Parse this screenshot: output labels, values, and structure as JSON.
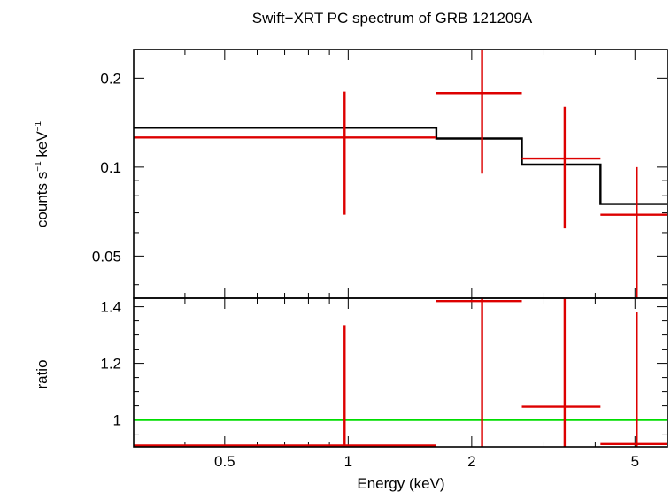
{
  "chart_data": [
    {
      "type": "scatter",
      "title": "Swift−XRT PC spectrum of GRB 121209A",
      "xlabel": "",
      "ylabel_parts": [
        "counts s",
        "−1",
        " keV",
        "−1"
      ],
      "xscale": "log",
      "yscale": "log",
      "xlim": [
        0.3,
        6.0
      ],
      "ylim": [
        0.036,
        0.25
      ],
      "yticks": [
        {
          "value": 0.2,
          "label": "0.2"
        },
        {
          "value": 0.1,
          "label": "0.1"
        },
        {
          "value": 0.05,
          "label": "0.05"
        }
      ],
      "series": [
        {
          "kind": "data",
          "color": "#dd0000",
          "points": [
            {
              "x": 0.98,
              "xlo": 0.3,
              "xhi": 1.64,
              "y": 0.126,
              "ylo": 0.069,
              "yhi": 0.18
            },
            {
              "x": 2.12,
              "xlo": 1.64,
              "xhi": 2.65,
              "y": 0.178,
              "ylo": 0.095,
              "yhi": 0.255
            },
            {
              "x": 3.37,
              "xlo": 2.65,
              "xhi": 4.12,
              "y": 0.107,
              "ylo": 0.062,
              "yhi": 0.16
            },
            {
              "x": 5.05,
              "xlo": 4.12,
              "xhi": 6.0,
              "y": 0.069,
              "ylo": 0.036,
              "yhi": 0.1
            }
          ]
        },
        {
          "kind": "model",
          "color": "#000000",
          "steps": [
            {
              "xlo": 0.3,
              "xhi": 1.64,
              "y": 0.136
            },
            {
              "xlo": 1.64,
              "xhi": 2.65,
              "y": 0.125
            },
            {
              "xlo": 2.65,
              "xhi": 4.12,
              "y": 0.102
            },
            {
              "xlo": 4.12,
              "xhi": 6.0,
              "y": 0.075
            }
          ]
        }
      ]
    },
    {
      "type": "scatter",
      "title": "",
      "xlabel": "Energy (keV)",
      "ylabel": "ratio",
      "xscale": "log",
      "yscale": "linear",
      "xlim": [
        0.3,
        6.0
      ],
      "ylim": [
        0.905,
        1.43
      ],
      "xticks": [
        {
          "value": 0.5,
          "label": "0.5"
        },
        {
          "value": 1,
          "label": "1"
        },
        {
          "value": 2,
          "label": "2"
        },
        {
          "value": 5,
          "label": "5"
        }
      ],
      "yticks": [
        {
          "value": 1.4,
          "label": "1.4"
        },
        {
          "value": 1.2,
          "label": "1.2"
        },
        {
          "value": 1,
          "label": "1"
        }
      ],
      "reference_line": {
        "y": 1.0,
        "color": "#00dd00"
      },
      "series": [
        {
          "kind": "ratio",
          "color": "#dd0000",
          "points": [
            {
              "x": 0.98,
              "xlo": 0.3,
              "xhi": 1.64,
              "y": 0.91,
              "ylo": 0.905,
              "yhi": 1.335
            },
            {
              "x": 2.12,
              "xlo": 1.64,
              "xhi": 2.65,
              "y": 1.42,
              "ylo": 0.905,
              "yhi": 1.43
            },
            {
              "x": 3.37,
              "xlo": 2.65,
              "xhi": 4.12,
              "y": 1.047,
              "ylo": 0.905,
              "yhi": 1.43
            },
            {
              "x": 5.05,
              "xlo": 4.12,
              "xhi": 6.0,
              "y": 0.915,
              "ylo": 0.905,
              "yhi": 1.38
            }
          ]
        }
      ]
    }
  ]
}
